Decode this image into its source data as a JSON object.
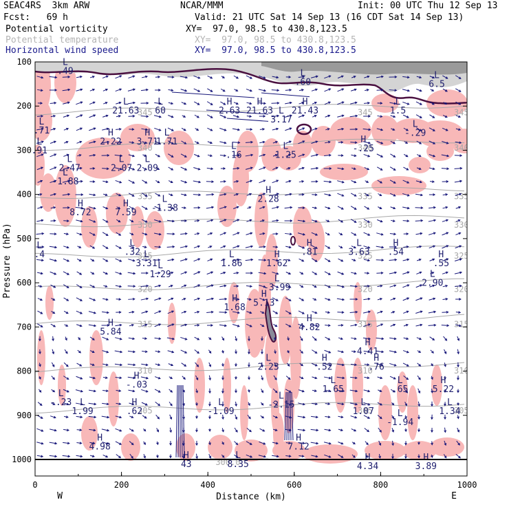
{
  "header": {
    "model_left": "SEAC4RS  3km ARW",
    "model_center": "NCAR/MMM",
    "init": "Init: 00 UTC Thu 12 Sep 13",
    "fcst": "Fcst:   69 h",
    "valid": "Valid: 21 UTC Sat 14 Sep 13 (16 CDT Sat 14 Sep 13)",
    "fields": [
      {
        "name": "Potential vorticity",
        "xy": "XY=  97.0, 98.5 to 430.8,123.5"
      },
      {
        "name": "Potential temperature",
        "xy": "XY=  97.0, 98.5 to 430.8,123.5"
      },
      {
        "name": "Horizontal wind speed",
        "xy": "XY=  97.0, 98.5 to 430.8,123.5"
      }
    ]
  },
  "colors": {
    "pv_shade": "#f8b8b8",
    "pv_contour": "#4a1040",
    "theta": "#a8a8a8",
    "wind": "#141478",
    "hl_label": "#1e1e6e"
  },
  "chart_data": {
    "type": "cross-section",
    "xlabel": "Distance (km)",
    "ylabel": "Pressure (hPa)",
    "xlim": [
      0,
      1000
    ],
    "ylim": [
      1000,
      100
    ],
    "x_ticks": [
      "0",
      "200",
      "400",
      "600",
      "800",
      "1000"
    ],
    "y_ticks": [
      "100",
      "200",
      "300",
      "400",
      "500",
      "600",
      "700",
      "800",
      "900",
      "1000"
    ],
    "x_ends": {
      "left": "W",
      "right": "E"
    },
    "theta_contours": [
      {
        "label": "300.0",
        "segments": [
          [
            405,
            1000
          ],
          [
            540,
            1000
          ]
        ]
      },
      {
        "label": "305",
        "p": 880
      },
      {
        "label": "310",
        "p": 790
      },
      {
        "label": "315",
        "p": 685
      },
      {
        "label": "320",
        "p": 605
      },
      {
        "label": "325",
        "p": 530
      },
      {
        "label": "330",
        "p": 460
      },
      {
        "label": "335",
        "p": 395
      },
      {
        "label": "340",
        "p": 285
      },
      {
        "label": "345",
        "p": 205
      }
    ],
    "hl_labels": [
      {
        "t": "H",
        "x": 175,
        "p": 700,
        "v": "5.84"
      },
      {
        "t": "L",
        "x": 290,
        "p": 570,
        "v": "1.29"
      },
      {
        "t": "H",
        "x": 635,
        "p": 690,
        "v": "4.82"
      },
      {
        "t": "L",
        "x": 560,
        "p": 600,
        "v": "-3.99"
      },
      {
        "t": "H",
        "x": 530,
        "p": 635,
        "v": "5.13"
      },
      {
        "t": "H",
        "x": 462,
        "p": 645,
        "v": "1.68"
      },
      {
        "t": "L",
        "x": 300,
        "p": 420,
        "v": "-1.38"
      },
      {
        "t": "H",
        "x": 105,
        "p": 430,
        "v": "8.72"
      },
      {
        "t": "H",
        "x": 210,
        "p": 430,
        "v": "7.59"
      },
      {
        "t": "H",
        "x": 540,
        "p": 400,
        "v": "2.28"
      },
      {
        "t": "L",
        "x": 305,
        "p": 270,
        "v": "1.71"
      },
      {
        "t": "H",
        "x": 260,
        "p": 270,
        "v": "3.71"
      },
      {
        "t": "H",
        "x": 175,
        "p": 270,
        "v": "2.22"
      },
      {
        "t": "L",
        "x": 80,
        "p": 330,
        "v": "2.47"
      },
      {
        "t": "L",
        "x": 70,
        "p": 360,
        "v": "-1.88"
      },
      {
        "t": "L",
        "x": 200,
        "p": 330,
        "v": "2.07"
      },
      {
        "t": "L",
        "x": 260,
        "p": 330,
        "v": "2.09"
      },
      {
        "t": "L",
        "x": 210,
        "p": 200,
        "v": "21.63"
      },
      {
        "t": "L",
        "x": 290,
        "p": 200,
        "v": "60"
      },
      {
        "t": "H",
        "x": 450,
        "p": 200,
        "v": "2.63"
      },
      {
        "t": "H",
        "x": 520,
        "p": 200,
        "v": "21.63"
      },
      {
        "t": "H",
        "x": 625,
        "p": 200,
        "v": "21.43"
      },
      {
        "t": "L",
        "x": 460,
        "p": 300,
        "v": ".16"
      },
      {
        "t": "L",
        "x": 580,
        "p": 300,
        "v": "1.25"
      },
      {
        "t": "H",
        "x": 760,
        "p": 285,
        "v": "-.25"
      },
      {
        "t": "L",
        "x": 880,
        "p": 250,
        "v": "-.29"
      },
      {
        "t": "L",
        "x": 620,
        "p": 135,
        "v": ".60"
      },
      {
        "t": "L",
        "x": 570,
        "p": 220,
        "v": "3.17"
      },
      {
        "t": "L",
        "x": 70,
        "p": 110,
        "v": ".49"
      },
      {
        "t": "L",
        "x": 930,
        "p": 140,
        "v": "6.5"
      },
      {
        "t": "L",
        "x": 840,
        "p": 200,
        "v": "1.5"
      },
      {
        "t": "L",
        "x": 15,
        "p": 245,
        "v": ".71"
      },
      {
        "t": "L",
        "x": 10,
        "p": 290,
        "v": ".91"
      },
      {
        "t": "L",
        "x": 258,
        "p": 545,
        "v": "3.31"
      },
      {
        "t": "L",
        "x": 455,
        "p": 545,
        "v": "1.86"
      },
      {
        "t": "H",
        "x": 560,
        "p": 545,
        "v": "1.62"
      },
      {
        "t": "H",
        "x": 635,
        "p": 520,
        "v": ".81"
      },
      {
        "t": "L",
        "x": 750,
        "p": 520,
        "v": "3.63"
      },
      {
        "t": "H",
        "x": 835,
        "p": 520,
        "v": ".54"
      },
      {
        "t": "H",
        "x": 940,
        "p": 545,
        "v": ".55"
      },
      {
        "t": "L",
        "x": 920,
        "p": 590,
        "v": "2.90"
      },
      {
        "t": "L",
        "x": 225,
        "p": 520,
        "v": ".32"
      },
      {
        "t": "L",
        "x": 10,
        "p": 525,
        "v": ".4"
      },
      {
        "t": "H",
        "x": 770,
        "p": 745,
        "v": "4.41"
      },
      {
        "t": "H",
        "x": 670,
        "p": 780,
        "v": ".52"
      },
      {
        "t": "H",
        "x": 790,
        "p": 780,
        "v": ".76"
      },
      {
        "t": "L",
        "x": 540,
        "p": 780,
        "v": "2.23"
      },
      {
        "t": "L",
        "x": 690,
        "p": 830,
        "v": "1.65"
      },
      {
        "t": "L",
        "x": 845,
        "p": 830,
        "v": ".65"
      },
      {
        "t": "H",
        "x": 945,
        "p": 830,
        "v": "5.22"
      },
      {
        "t": "L",
        "x": 960,
        "p": 880,
        "v": "1.34"
      },
      {
        "t": "L",
        "x": 570,
        "p": 865,
        "v": "-2.15"
      },
      {
        "t": "L",
        "x": 760,
        "p": 880,
        "v": "1.07"
      },
      {
        "t": "L",
        "x": 845,
        "p": 905,
        "v": "-1.94"
      },
      {
        "t": "L",
        "x": 430,
        "p": 880,
        "v": "-1.09"
      },
      {
        "t": "H",
        "x": 235,
        "p": 820,
        "v": "-.03"
      },
      {
        "t": "H",
        "x": 230,
        "p": 880,
        "v": ".62"
      },
      {
        "t": "L",
        "x": 110,
        "p": 880,
        "v": "1.99"
      },
      {
        "t": "L",
        "x": 60,
        "p": 860,
        "v": "-.23"
      },
      {
        "t": "H",
        "x": 150,
        "p": 960,
        "v": "4.98"
      },
      {
        "t": "H",
        "x": 610,
        "p": 960,
        "v": "7.12"
      },
      {
        "t": "H",
        "x": 350,
        "p": 1000,
        "v": "43"
      },
      {
        "t": "L",
        "x": 470,
        "p": 1000,
        "v": "8.35"
      },
      {
        "t": "H",
        "x": 770,
        "p": 1005,
        "v": "4.34"
      },
      {
        "t": "H",
        "x": 905,
        "p": 1005,
        "v": "3.89"
      }
    ]
  }
}
